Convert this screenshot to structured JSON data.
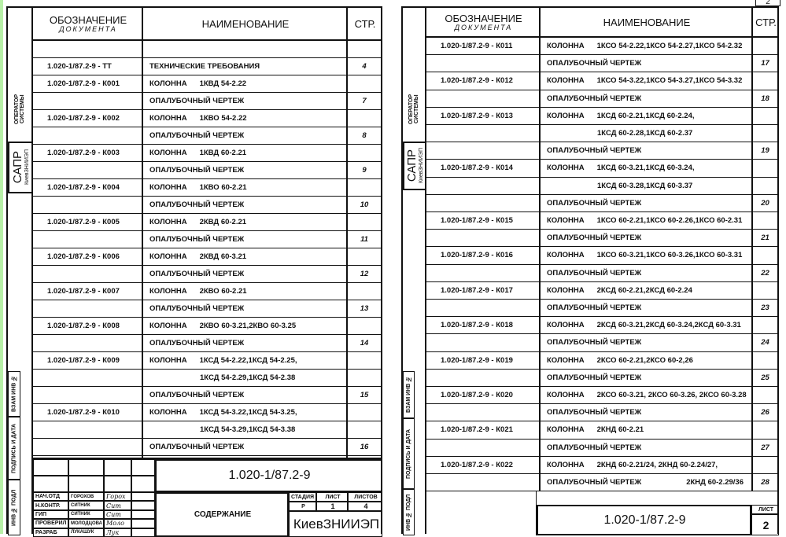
{
  "left_page": {
    "header": {
      "col1_line1": "ОБОЗНАЧЕНИЕ",
      "col1_line2": "ДОКУМЕНТА",
      "col2": "НАИМЕНОВАНИЕ",
      "col3": "СТР."
    },
    "strip": {
      "operator": "ОПЕРАТОР СИСТЕМЫ",
      "sapr": "САПР",
      "org": "КиевЗНИИЭП",
      "vzam": "ВЗАМ ИНВ №",
      "podpis": "ПОДПИСЬ И ДАТА",
      "inv": "ИНВ № ПОДЛ"
    },
    "rows": [
      {
        "doc": "",
        "label": "",
        "spec": "",
        "page": ""
      },
      {
        "doc": "1.020-1/87.2-9 - ТТ",
        "label": "ТЕХНИЧЕСКИЕ ТРЕБОВАНИЯ",
        "spec": "",
        "page": "4"
      },
      {
        "doc": "1.020-1/87.2-9 - К001",
        "label": "КОЛОННА",
        "spec": "1КВД 54-2.22",
        "page": ""
      },
      {
        "doc": "",
        "label": "ОПАЛУБОЧНЫЙ ЧЕРТЕЖ",
        "spec": "",
        "page": "7"
      },
      {
        "doc": "1.020-1/87.2-9 - К002",
        "label": "КОЛОННА",
        "spec": "1КВО 54-2.22",
        "page": ""
      },
      {
        "doc": "",
        "label": "ОПАЛУБОЧНЫЙ ЧЕРТЕЖ",
        "spec": "",
        "page": "8"
      },
      {
        "doc": "1.020-1/87.2-9 - К003",
        "label": "КОЛОННА",
        "spec": "1КВД 60-2.21",
        "page": ""
      },
      {
        "doc": "",
        "label": "ОПАЛУБОЧНЫЙ ЧЕРТЕЖ",
        "spec": "",
        "page": "9"
      },
      {
        "doc": "1.020-1/87.2-9 - К004",
        "label": "КОЛОННА",
        "spec": "1КВО 60-2.21",
        "page": ""
      },
      {
        "doc": "",
        "label": "ОПАЛУБОЧНЫЙ ЧЕРТЕЖ",
        "spec": "",
        "page": "10"
      },
      {
        "doc": "1.020-1/87.2-9 - К005",
        "label": "КОЛОННА",
        "spec": "2КВД 60-2.21",
        "page": ""
      },
      {
        "doc": "",
        "label": "ОПАЛУБОЧНЫЙ ЧЕРТЕЖ",
        "spec": "",
        "page": "11"
      },
      {
        "doc": "1.020-1/87.2-9 - К006",
        "label": "КОЛОННА",
        "spec": "2КВД 60-3.21",
        "page": ""
      },
      {
        "doc": "",
        "label": "ОПАЛУБОЧНЫЙ ЧЕРТЕЖ",
        "spec": "",
        "page": "12"
      },
      {
        "doc": "1.020-1/87.2-9 - К007",
        "label": "КОЛОННА",
        "spec": "2КВО 60-2.21",
        "page": ""
      },
      {
        "doc": "",
        "label": "ОПАЛУБОЧНЫЙ ЧЕРТЕЖ",
        "spec": "",
        "page": "13"
      },
      {
        "doc": "1.020-1/87.2-9 - К008",
        "label": "КОЛОННА",
        "spec": "2КВО 60-3.21,2КВО 60-3.25",
        "page": ""
      },
      {
        "doc": "",
        "label": "ОПАЛУБОЧНЫЙ ЧЕРТЕЖ",
        "spec": "",
        "page": "14"
      },
      {
        "doc": "1.020-1/87.2-9 - К009",
        "label": "КОЛОННА",
        "spec": "1КСД 54-2.22,1КСД 54-2.25,",
        "page": ""
      },
      {
        "doc": "",
        "label": "",
        "spec": "1КСД 54-2.29,1КСД 54-2.38",
        "page": ""
      },
      {
        "doc": "",
        "label": "ОПАЛУБОЧНЫЙ ЧЕРТЕЖ",
        "spec": "",
        "page": "15"
      },
      {
        "doc": "1.020-1/87.2-9 - К010",
        "label": "КОЛОННА",
        "spec": "1КСД 54-3.22,1КСД 54-3.25,",
        "page": ""
      },
      {
        "doc": "",
        "label": "",
        "spec": "1КСД 54-3.29,1КСД 54-3.38",
        "page": ""
      },
      {
        "doc": "",
        "label": "ОПАЛУБОЧНЫЙ ЧЕРТЕЖ",
        "spec": "",
        "page": "16"
      }
    ],
    "title_block": {
      "code": "1.020-1/87.2-9",
      "people": [
        {
          "role": "НАЧ.ОТД",
          "name": "ГОРОХОВ",
          "sig": "Горох"
        },
        {
          "role": "Н.КОНТР.",
          "name": "СИТНИК",
          "sig": "Сит"
        },
        {
          "role": "ГИП",
          "name": "СИТНИК",
          "sig": "Сит"
        },
        {
          "role": "ПРОВЕРИЛ",
          "name": "МОЛОДЦОВА",
          "sig": "Моло"
        },
        {
          "role": "РАЗРАБ",
          "name": "ЛУКАШУК",
          "sig": "Лук"
        }
      ],
      "title": "СОДЕРЖАНИЕ",
      "stage_label": "СТАДИЯ",
      "sheet_label": "ЛИСТ",
      "sheets_label": "ЛИСТОВ",
      "stage": "Р",
      "sheet": "1",
      "sheets": "4",
      "org": "КиевЗНИИЭП"
    }
  },
  "right_page": {
    "corner_number": "2",
    "header": {
      "col1_line1": "ОБОЗНАЧЕНИЕ",
      "col1_line2": "ДОКУМЕНТА",
      "col2": "НАИМЕНОВАНИЕ",
      "col3": "СТР."
    },
    "strip": {
      "operator": "ОПЕРАТОР СИСТЕМЫ",
      "sapr": "САПР",
      "org": "КиевЗНИИЭП",
      "vzam": "ВЗАМ ИНВ №",
      "podpis": "ПОДПИСЬ И ДАТА",
      "inv": "ИНВ № ПОДЛ"
    },
    "rows": [
      {
        "doc": "1.020-1/87.2-9 - К011",
        "label": "КОЛОННА",
        "spec": "1КСО 54-2.22,1КСО 54-2.27,1КСО 54-2.32",
        "page": ""
      },
      {
        "doc": "",
        "label": "ОПАЛУБОЧНЫЙ ЧЕРТЕЖ",
        "spec": "",
        "page": "17"
      },
      {
        "doc": "1.020-1/87.2-9 - К012",
        "label": "КОЛОННА",
        "spec": "1КСО 54-3.22,1КСО 54-3.27,1КСО 54-3.32",
        "page": ""
      },
      {
        "doc": "",
        "label": "ОПАЛУБОЧНЫЙ ЧЕРТЕЖ",
        "spec": "",
        "page": "18"
      },
      {
        "doc": "1.020-1/87.2-9 - К013",
        "label": "КОЛОННА",
        "spec": "1КСД 60-2.21,1КСД 60-2.24,",
        "page": ""
      },
      {
        "doc": "",
        "label": "",
        "spec": "1КСД 60-2.28,1КСД 60-2.37",
        "page": ""
      },
      {
        "doc": "",
        "label": "ОПАЛУБОЧНЫЙ ЧЕРТЕЖ",
        "spec": "",
        "page": "19"
      },
      {
        "doc": "1.020-1/87.2-9 - К014",
        "label": "КОЛОННА",
        "spec": "1КСД 60-3.21,1КСД 60-3.24,",
        "page": ""
      },
      {
        "doc": "",
        "label": "",
        "spec": "1КСД 60-3.28,1КСД 60-3.37",
        "page": ""
      },
      {
        "doc": "",
        "label": "ОПАЛУБОЧНЫЙ ЧЕРТЕЖ",
        "spec": "",
        "page": "20"
      },
      {
        "doc": "1.020-1/87.2-9 - К015",
        "label": "КОЛОННА",
        "spec": "1КСО 60-2.21,1КСО 60-2.26,1КСО 60-2.31",
        "page": ""
      },
      {
        "doc": "",
        "label": "ОПАЛУБОЧНЫЙ ЧЕРТЕЖ",
        "spec": "",
        "page": "21"
      },
      {
        "doc": "1.020-1/87.2-9 - К016",
        "label": "КОЛОННА",
        "spec": "1КСО 60-3.21,1КСО 60-3.26,1КСО 60-3.31",
        "page": ""
      },
      {
        "doc": "",
        "label": "ОПАЛУБОЧНЫЙ ЧЕРТЕЖ",
        "spec": "",
        "page": "22"
      },
      {
        "doc": "1.020-1/87.2-9 - К017",
        "label": "КОЛОННА",
        "spec": "2КСД 60-2.21,2КСД 60-2.24",
        "page": ""
      },
      {
        "doc": "",
        "label": "ОПАЛУБОЧНЫЙ ЧЕРТЕЖ",
        "spec": "",
        "page": "23"
      },
      {
        "doc": "1.020-1/87.2-9 - К018",
        "label": "КОЛОННА",
        "spec": "2КСД 60-3.21,2КСД 60-3.24,2КСД 60-3.31",
        "page": ""
      },
      {
        "doc": "",
        "label": "ОПАЛУБОЧНЫЙ ЧЕРТЕЖ",
        "spec": "",
        "page": "24"
      },
      {
        "doc": "1.020-1/87.2-9 - К019",
        "label": "КОЛОННА",
        "spec": "2КСО 60-2.21,2КСО 60-2,26",
        "page": ""
      },
      {
        "doc": "",
        "label": "ОПАЛУБОЧНЫЙ ЧЕРТЕЖ",
        "spec": "",
        "page": "25"
      },
      {
        "doc": "1.020-1/87.2-9 - К020",
        "label": "КОЛОННА",
        "spec": "2КСО 60-3.21, 2КСО 60-3.26, 2КСО 60-3.28",
        "page": ""
      },
      {
        "doc": "",
        "label": "ОПАЛУБОЧНЫЙ ЧЕРТЕЖ",
        "spec": "",
        "page": "26"
      },
      {
        "doc": "1.020-1/87.2-9 - К021",
        "label": "КОЛОННА",
        "spec": "2КНД 60-2.21",
        "page": ""
      },
      {
        "doc": "",
        "label": "ОПАЛУБОЧНЫЙ ЧЕРТЕЖ",
        "spec": "",
        "page": "27"
      },
      {
        "doc": "1.020-1/87.2-9 - К022",
        "label": "КОЛОННА",
        "spec": "2КНД 60-2.21/24, 2КНД 60-2.24/27,",
        "page": ""
      },
      {
        "doc": "",
        "label": "ОПАЛУБОЧНЫЙ ЧЕРТЕЖ",
        "spec": "2КНД 60-2.29/36",
        "page": "28"
      }
    ],
    "title_block": {
      "code": "1.020-1/87.2-9",
      "sheet_label": "ЛИСТ",
      "sheet": "2"
    }
  }
}
